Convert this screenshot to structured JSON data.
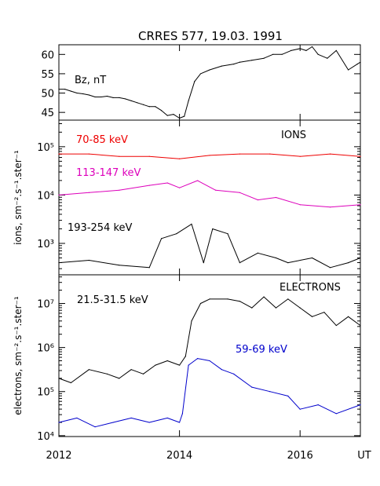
{
  "title": "CRRES 577,  19.03. 1991",
  "chart_data": [
    {
      "id": "bz",
      "type": "line",
      "panel_label": "Bz, nT",
      "ylabel": "",
      "yscale": "linear",
      "ylim": [
        43,
        62.5
      ],
      "yticks": [
        {
          "v": 45,
          "label": "45"
        },
        {
          "v": 50,
          "label": "50"
        },
        {
          "v": 55,
          "label": "55"
        },
        {
          "v": 60,
          "label": "60"
        }
      ],
      "series": [
        {
          "color": "#000000",
          "x": [
            2012.0,
            2012.1,
            2012.2,
            2012.3,
            2012.4,
            2012.5,
            2012.6,
            2012.7,
            2012.8,
            2012.9,
            2013.0,
            2013.1,
            2013.2,
            2013.3,
            2013.4,
            2013.5,
            2013.6,
            2013.7,
            2013.8,
            2013.9,
            2014.0,
            2014.08,
            2014.15,
            2014.25,
            2014.35,
            2014.5,
            2014.7,
            2014.9,
            2015.0,
            2015.2,
            2015.4,
            2015.55,
            2015.7,
            2015.85,
            2016.0,
            2016.1,
            2016.2,
            2016.3,
            2016.45,
            2016.6,
            2016.8,
            2016.95,
            2017.0
          ],
          "values": [
            51.0,
            51.0,
            50.5,
            50.0,
            49.8,
            49.5,
            49.0,
            49.0,
            49.2,
            48.8,
            48.8,
            48.5,
            48.0,
            47.5,
            47.0,
            46.5,
            46.5,
            45.5,
            44.2,
            44.5,
            43.5,
            44.0,
            48.0,
            53.0,
            55.0,
            56.0,
            57.0,
            57.5,
            58.0,
            58.5,
            59.0,
            60.0,
            60.0,
            61.0,
            61.5,
            61.0,
            62.0,
            60.0,
            59.0,
            61.0,
            56.0,
            57.5,
            58.0
          ]
        }
      ]
    },
    {
      "id": "ions",
      "type": "line",
      "panel_label": "IONS",
      "ylabel": "ions, sm⁻².s⁻¹.ster⁻¹",
      "yscale": "log",
      "ylim_log10": [
        2.35,
        5.55
      ],
      "yticks": [
        {
          "v": 3,
          "label": "10³"
        },
        {
          "v": 4,
          "label": "10⁴"
        },
        {
          "v": 5,
          "label": "10⁵"
        }
      ],
      "series": [
        {
          "name": "70-85 keV",
          "color": "#ee0000",
          "x": [
            2012.0,
            2012.5,
            2013.0,
            2013.5,
            2014.0,
            2014.5,
            2015.0,
            2015.5,
            2016.0,
            2016.5,
            2017.0
          ],
          "values_log10": [
            4.85,
            4.85,
            4.8,
            4.8,
            4.75,
            4.82,
            4.85,
            4.85,
            4.8,
            4.85,
            4.8
          ]
        },
        {
          "name": "113-147 keV",
          "color": "#dd00bb",
          "x": [
            2012.0,
            2012.5,
            2013.0,
            2013.5,
            2013.8,
            2014.0,
            2014.3,
            2014.6,
            2015.0,
            2015.3,
            2015.6,
            2016.0,
            2016.5,
            2017.0
          ],
          "values_log10": [
            4.0,
            4.05,
            4.1,
            4.2,
            4.25,
            4.15,
            4.3,
            4.1,
            4.05,
            3.9,
            3.95,
            3.8,
            3.75,
            3.8
          ]
        },
        {
          "name": "193-254 keV",
          "color": "#000000",
          "x": [
            2012.0,
            2012.5,
            2013.0,
            2013.5,
            2013.7,
            2013.95,
            2014.2,
            2014.4,
            2014.55,
            2014.8,
            2015.0,
            2015.3,
            2015.6,
            2015.8,
            2016.2,
            2016.5,
            2016.8,
            2017.0
          ],
          "values_log10": [
            2.6,
            2.65,
            2.55,
            2.5,
            3.1,
            3.2,
            3.4,
            2.6,
            3.3,
            3.2,
            2.6,
            2.8,
            2.7,
            2.6,
            2.7,
            2.5,
            2.6,
            2.7
          ]
        }
      ]
    },
    {
      "id": "electrons",
      "type": "line",
      "panel_label": "ELECTRONS",
      "ylabel": "electrons, sm⁻².s⁻¹.ster⁻¹",
      "yscale": "log",
      "ylim_log10": [
        3.98,
        7.65
      ],
      "yticks": [
        {
          "v": 4,
          "label": "10⁴"
        },
        {
          "v": 5,
          "label": "10⁵"
        },
        {
          "v": 6,
          "label": "10⁶"
        },
        {
          "v": 7,
          "label": "10⁷"
        }
      ],
      "series": [
        {
          "name": "21.5-31.5 keV",
          "color": "#000000",
          "x": [
            2012.0,
            2012.2,
            2012.5,
            2012.8,
            2013.0,
            2013.2,
            2013.4,
            2013.6,
            2013.8,
            2014.0,
            2014.1,
            2014.2,
            2014.35,
            2014.5,
            2014.8,
            2015.0,
            2015.2,
            2015.4,
            2015.6,
            2015.8,
            2016.0,
            2016.2,
            2016.4,
            2016.6,
            2016.8,
            2017.0
          ],
          "values_log10": [
            5.3,
            5.2,
            5.5,
            5.4,
            5.3,
            5.5,
            5.4,
            5.6,
            5.7,
            5.6,
            5.8,
            6.6,
            7.0,
            7.1,
            7.1,
            7.05,
            6.9,
            7.15,
            6.9,
            7.1,
            6.9,
            6.7,
            6.8,
            6.5,
            6.7,
            6.5
          ]
        },
        {
          "name": "59-69 keV",
          "color": "#0000cc",
          "x": [
            2012.0,
            2012.3,
            2012.6,
            2012.9,
            2013.2,
            2013.5,
            2013.8,
            2014.0,
            2014.05,
            2014.15,
            2014.3,
            2014.5,
            2014.7,
            2014.9,
            2015.2,
            2015.5,
            2015.8,
            2016.0,
            2016.3,
            2016.6,
            2017.0
          ],
          "values_log10": [
            4.3,
            4.4,
            4.2,
            4.3,
            4.4,
            4.3,
            4.4,
            4.3,
            4.5,
            5.6,
            5.75,
            5.7,
            5.5,
            5.4,
            5.1,
            5.0,
            4.9,
            4.6,
            4.7,
            4.5,
            4.7
          ]
        }
      ]
    }
  ],
  "x_axis": {
    "lim": [
      2012,
      2017
    ],
    "ticks": [
      {
        "v": 2012,
        "label": "2012"
      },
      {
        "v": 2014,
        "label": "2014"
      },
      {
        "v": 2016,
        "label": "2016"
      }
    ],
    "unit_label": "UT"
  }
}
